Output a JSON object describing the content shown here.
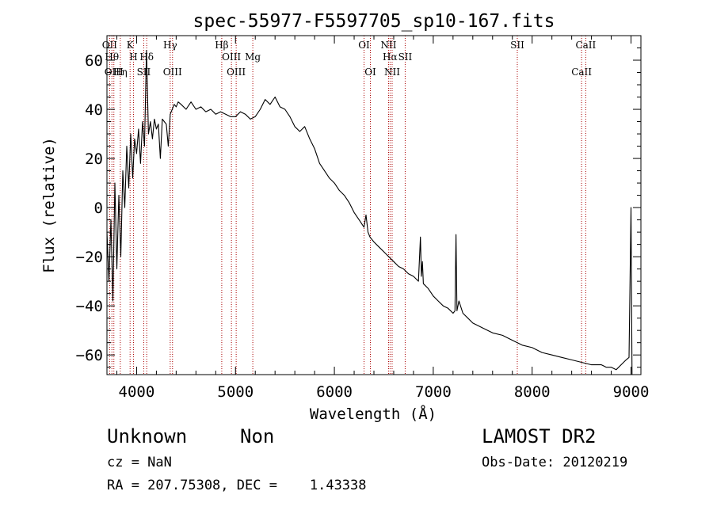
{
  "chart_data": {
    "type": "line",
    "title": "spec-55977-F5597705_sp10-167.fits",
    "xlabel": "Wavelength (Å)",
    "ylabel": "Flux (relative)",
    "xlim": [
      3700,
      9100
    ],
    "ylim": [
      -68,
      70
    ],
    "xticks": [
      4000,
      5000,
      6000,
      7000,
      8000,
      9000
    ],
    "yticks": [
      -60,
      -40,
      -20,
      0,
      20,
      40,
      60
    ],
    "line_color": "#000000",
    "marker_color": "#aa0000",
    "series": [
      {
        "x": [
          3700,
          3720,
          3740,
          3760,
          3780,
          3800,
          3820,
          3840,
          3860,
          3880,
          3900,
          3920,
          3940,
          3960,
          3980,
          4000,
          4020,
          4040,
          4060,
          4080,
          4100,
          4120,
          4140,
          4160,
          4180,
          4200,
          4220,
          4240,
          4260,
          4280,
          4300,
          4320,
          4340,
          4360,
          4380,
          4400,
          4420,
          4450,
          4500,
          4550,
          4600,
          4650,
          4700,
          4750,
          4800,
          4850,
          4900,
          4950,
          5000,
          5050,
          5100,
          5150,
          5200,
          5250,
          5300,
          5350,
          5400,
          5450,
          5500,
          5550,
          5600,
          5650,
          5700,
          5750,
          5800,
          5850,
          5900,
          5950,
          6000,
          6050,
          6100,
          6150,
          6200,
          6250,
          6300,
          6320,
          6340,
          6360,
          6400,
          6450,
          6500,
          6550,
          6600,
          6650,
          6700,
          6750,
          6800,
          6850,
          6870,
          6880,
          6890,
          6900,
          6950,
          7000,
          7050,
          7100,
          7150,
          7200,
          7220,
          7230,
          7240,
          7260,
          7300,
          7350,
          7400,
          7450,
          7500,
          7600,
          7700,
          7800,
          7900,
          8000,
          8100,
          8200,
          8300,
          8400,
          8500,
          8600,
          8700,
          8750,
          8800,
          8850,
          8900,
          8950,
          8980,
          9000,
          9010
        ],
        "values": [
          -10,
          -30,
          -5,
          -38,
          10,
          -25,
          5,
          -20,
          15,
          0,
          25,
          8,
          30,
          12,
          28,
          22,
          32,
          18,
          35,
          25,
          64,
          30,
          35,
          28,
          36,
          32,
          34,
          20,
          36,
          35,
          34,
          25,
          38,
          40,
          42,
          41,
          43,
          42,
          40,
          43,
          40,
          41,
          39,
          40,
          38,
          39,
          38,
          37,
          37,
          39,
          38,
          36,
          37,
          40,
          44,
          42,
          45,
          41,
          40,
          37,
          33,
          31,
          33,
          28,
          24,
          18,
          15,
          12,
          10,
          7,
          5,
          2,
          -2,
          -5,
          -8,
          -3,
          -10,
          -12,
          -14,
          -16,
          -18,
          -20,
          -22,
          -24,
          -25,
          -27,
          -28,
          -30,
          -12,
          -28,
          -22,
          -31,
          -33,
          -36,
          -38,
          -40,
          -41,
          -43,
          -42,
          -11,
          -42,
          -38,
          -43,
          -45,
          -47,
          -48,
          -49,
          -51,
          -52,
          -54,
          -56,
          -57,
          -59,
          -60,
          -61,
          -62,
          -63,
          -64,
          -64,
          -65,
          -65,
          -66,
          -64,
          -62,
          -61,
          0,
          -68
        ]
      }
    ],
    "lines": [
      {
        "x": 3727,
        "top": "OII"
      },
      {
        "x": 3750,
        "top": "Hθ"
      },
      {
        "x": 3770,
        "bottom": "OIII"
      },
      {
        "x": 3835,
        "bottom": "Hη"
      },
      {
        "x": 3934,
        "top": "K"
      },
      {
        "x": 3968,
        "top": "H"
      },
      {
        "x": 4072,
        "bottom": "SII"
      },
      {
        "x": 4102,
        "top": "Hδ"
      },
      {
        "x": 4340,
        "top": "Hγ"
      },
      {
        "x": 4363,
        "bottom": "OIII"
      },
      {
        "x": 4861,
        "top": "Hβ"
      },
      {
        "x": 4959,
        "top": "OIII"
      },
      {
        "x": 5007,
        "bottom": "OIII"
      },
      {
        "x": 5175,
        "top": "Mg"
      },
      {
        "x": 6300,
        "top": "OI"
      },
      {
        "x": 6364,
        "bottom": "OI"
      },
      {
        "x": 6548,
        "top": "NII"
      },
      {
        "x": 6563,
        "top": "Hα"
      },
      {
        "x": 6584,
        "bottom": "NII"
      },
      {
        "x": 6716,
        "top": "SII"
      },
      {
        "x": 7850,
        "top": "SII"
      },
      {
        "x": 8500,
        "bottom": "CaII"
      },
      {
        "x": 8542,
        "top": "CaII"
      }
    ]
  },
  "info": {
    "object": "Unknown",
    "subclass": "Non",
    "survey": "LAMOST DR2",
    "cz": "cz = NaN",
    "obs_date": "Obs-Date: 20120219",
    "coords": "RA = 207.75308, DEC =    1.43338"
  }
}
